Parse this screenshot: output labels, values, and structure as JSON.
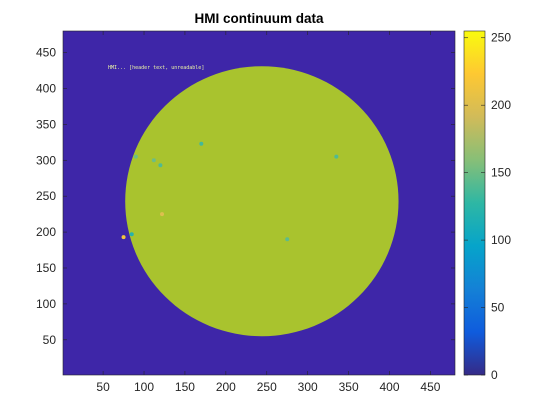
{
  "chart_data": {
    "type": "heatmap",
    "title": "HMI continuum data",
    "xlabel": "",
    "ylabel": "",
    "xlim": [
      1,
      480
    ],
    "ylim": [
      1,
      480
    ],
    "x_ticks": [
      50,
      100,
      150,
      200,
      250,
      300,
      350,
      400,
      450
    ],
    "y_ticks": [
      50,
      100,
      150,
      200,
      250,
      300,
      350,
      400,
      450
    ],
    "image": {
      "background_value": 10,
      "disk": {
        "center_x": 244,
        "center_y": 243,
        "radius_x": 167,
        "radius_y": 188,
        "value": 190
      },
      "header_text": "HMI... [header text, unreadable]",
      "features": [
        {
          "x": 90,
          "y": 305,
          "value": 150
        },
        {
          "x": 112,
          "y": 300,
          "value": 150
        },
        {
          "x": 120,
          "y": 293,
          "value": 140
        },
        {
          "x": 170,
          "y": 323,
          "value": 135
        },
        {
          "x": 85,
          "y": 197,
          "value": 120
        },
        {
          "x": 75,
          "y": 193,
          "value": 215
        },
        {
          "x": 335,
          "y": 305,
          "value": 140
        },
        {
          "x": 275,
          "y": 190,
          "value": 145
        },
        {
          "x": 122,
          "y": 225,
          "value": 200
        }
      ]
    },
    "colorbar": {
      "colormap": "parula",
      "clim": [
        0,
        255
      ],
      "ticks": [
        0,
        50,
        100,
        150,
        200,
        250
      ]
    },
    "grid": false
  },
  "colors": {
    "background": "#3e26a8",
    "disk": "#a9c32e",
    "axis": "#262626"
  }
}
